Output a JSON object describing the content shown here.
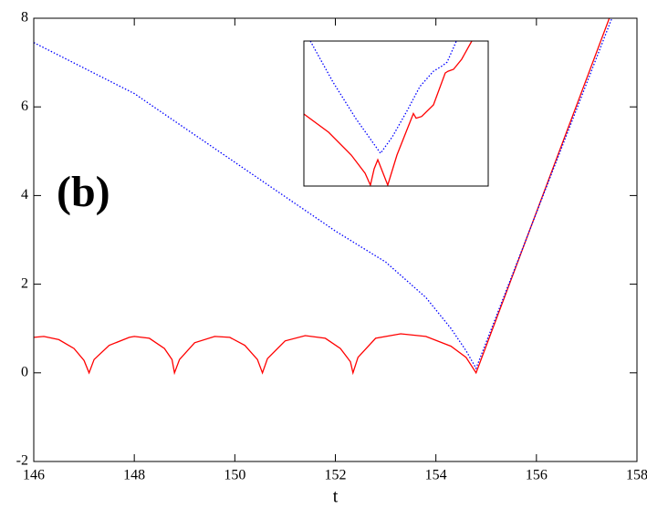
{
  "chart_data": [
    {
      "type": "line",
      "x_label": "t",
      "annotation": "(b)",
      "xlim": [
        146,
        158
      ],
      "ylim": [
        -2,
        8
      ],
      "xticks": [
        146,
        148,
        150,
        152,
        154,
        156,
        158
      ],
      "yticks": [
        -2,
        0,
        2,
        4,
        6,
        8
      ],
      "series": [
        {
          "color": "#ff0000",
          "style": "solid",
          "x": [
            146.0,
            146.2,
            146.5,
            146.8,
            147.0,
            147.1,
            147.2,
            147.5,
            147.9,
            148.0,
            148.3,
            148.6,
            148.75,
            148.8,
            148.9,
            149.2,
            149.6,
            149.9,
            150.2,
            150.45,
            150.55,
            150.65,
            151.0,
            151.4,
            151.8,
            152.1,
            152.3,
            152.35,
            152.45,
            152.8,
            153.3,
            153.8,
            154.3,
            154.6,
            154.8,
            157.45
          ],
          "values": [
            0.8,
            0.82,
            0.75,
            0.55,
            0.28,
            0.0,
            0.3,
            0.62,
            0.8,
            0.82,
            0.78,
            0.55,
            0.3,
            0.0,
            0.3,
            0.68,
            0.82,
            0.8,
            0.62,
            0.3,
            0.0,
            0.32,
            0.72,
            0.84,
            0.78,
            0.55,
            0.25,
            0.0,
            0.35,
            0.78,
            0.88,
            0.82,
            0.6,
            0.35,
            0.0,
            8.0
          ]
        },
        {
          "color": "#0000ff",
          "style": "dotted",
          "x": [
            146.0,
            148.0,
            150.0,
            152.0,
            153.0,
            153.8,
            154.3,
            154.6,
            154.8,
            157.5
          ],
          "values": [
            7.45,
            6.3,
            4.75,
            3.2,
            2.5,
            1.7,
            1.0,
            0.5,
            0.1,
            8.0
          ]
        }
      ]
    },
    {
      "type": "line",
      "xlim": [
        0,
        10
      ],
      "ylim": [
        0,
        10
      ],
      "series": [
        {
          "color": "#ff0000",
          "style": "solid",
          "x": [
            0,
            1.34,
            2.57,
            3.32,
            3.61,
            3.81,
            4.01,
            4.26,
            4.55,
            5.05,
            5.64,
            5.94,
            6.09,
            6.39,
            7.03,
            7.67,
            7.82,
            8.12,
            8.56,
            9.11
          ],
          "values": [
            4.97,
            3.71,
            2.14,
            0.88,
            0.06,
            1.19,
            1.82,
            1.0,
            0.06,
            2.14,
            4.03,
            5.0,
            4.68,
            4.8,
            5.6,
            7.8,
            7.92,
            8.05,
            8.74,
            10
          ]
        },
        {
          "color": "#0000ff",
          "style": "dotted",
          "x": [
            0.35,
            1.58,
            2.82,
            4.16,
            4.8,
            5.64,
            6.29,
            7.03,
            7.52,
            7.77,
            8.27
          ],
          "values": [
            10,
            7.17,
            4.65,
            2.26,
            3.4,
            5.28,
            6.86,
            7.92,
            8.3,
            8.55,
            10
          ]
        }
      ]
    }
  ]
}
